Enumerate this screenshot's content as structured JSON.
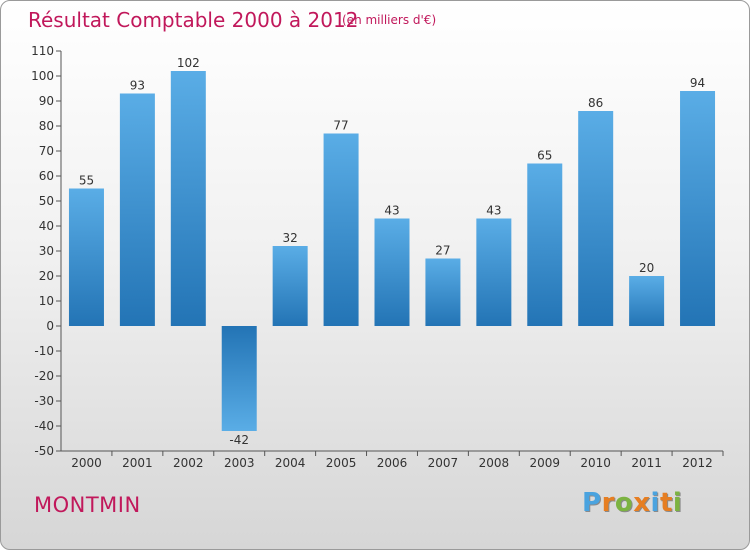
{
  "header": {
    "title": "Résultat Comptable 2000 à 2012",
    "subtitle": "(en milliers d'€)"
  },
  "footer": {
    "commune": "MONTMIN",
    "brand": "Proxiti",
    "brand_letters": [
      "P",
      "r",
      "o",
      "x",
      "i",
      "t",
      "i"
    ],
    "brand_colors": [
      "#4aa3df",
      "#e67e22",
      "#7cb342",
      "#e67e22",
      "#4aa3df",
      "#e67e22",
      "#7cb342"
    ]
  },
  "chart_data": {
    "type": "bar",
    "title": "Résultat Comptable 2000 à 2012",
    "subtitle": "(en milliers d'€)",
    "xlabel": "",
    "ylabel": "",
    "categories": [
      "2000",
      "2001",
      "2002",
      "2003",
      "2004",
      "2005",
      "2006",
      "2007",
      "2008",
      "2009",
      "2010",
      "2011",
      "2012"
    ],
    "values": [
      55,
      93,
      102,
      -42,
      32,
      77,
      43,
      27,
      43,
      65,
      86,
      20,
      94
    ],
    "ylim": [
      -50,
      110
    ],
    "yticks": [
      110,
      100,
      90,
      80,
      70,
      60,
      50,
      40,
      30,
      20,
      10,
      0,
      -10,
      -20,
      -30,
      -40,
      -50
    ],
    "grid": false,
    "colors": {
      "bar_light": "#5aade6",
      "bar_dark": "#2374b5",
      "axis": "#555555",
      "label": "#333333"
    }
  }
}
